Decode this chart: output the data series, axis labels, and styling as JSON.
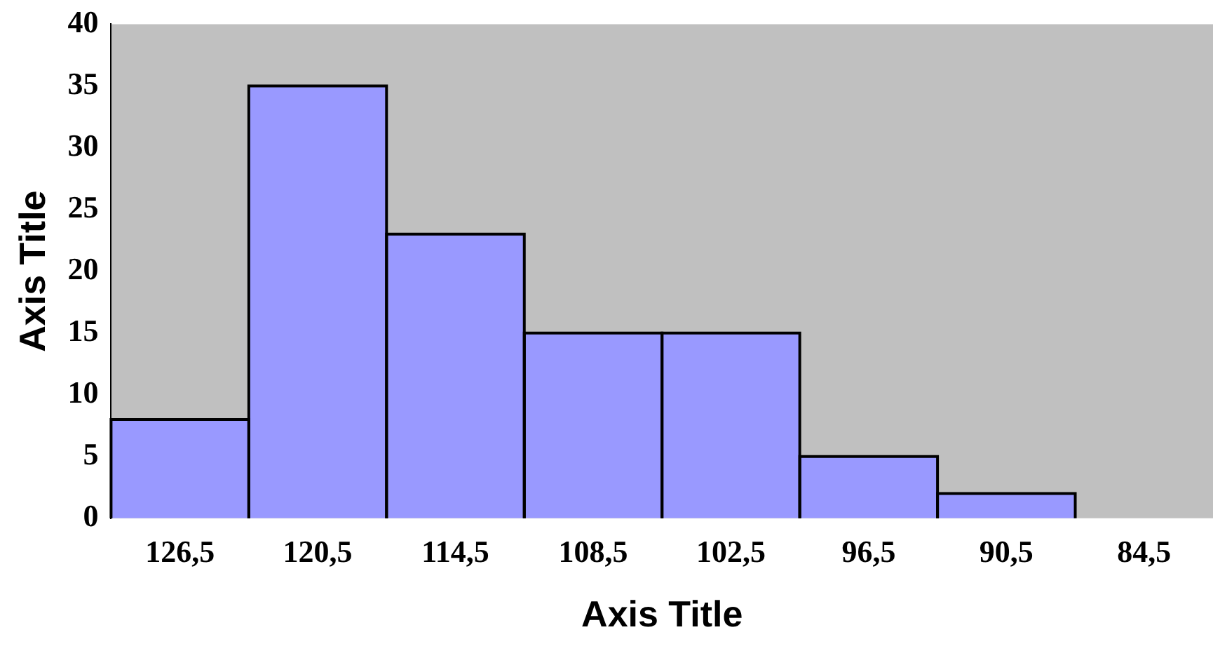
{
  "chart_data": {
    "type": "bar",
    "xlabel": "Axis Title",
    "ylabel": "Axis Title",
    "categories": [
      "126,5",
      "120,5",
      "114,5",
      "108,5",
      "102,5",
      "96,5",
      "90,5",
      "84,5"
    ],
    "values": [
      8,
      35,
      23,
      15,
      15,
      5,
      2,
      0
    ],
    "color": "#9999ff",
    "ylim": [
      0,
      40
    ],
    "yticks": [
      0,
      5,
      10,
      15,
      20,
      25,
      30,
      35,
      40
    ],
    "grid": false,
    "legend": false
  }
}
